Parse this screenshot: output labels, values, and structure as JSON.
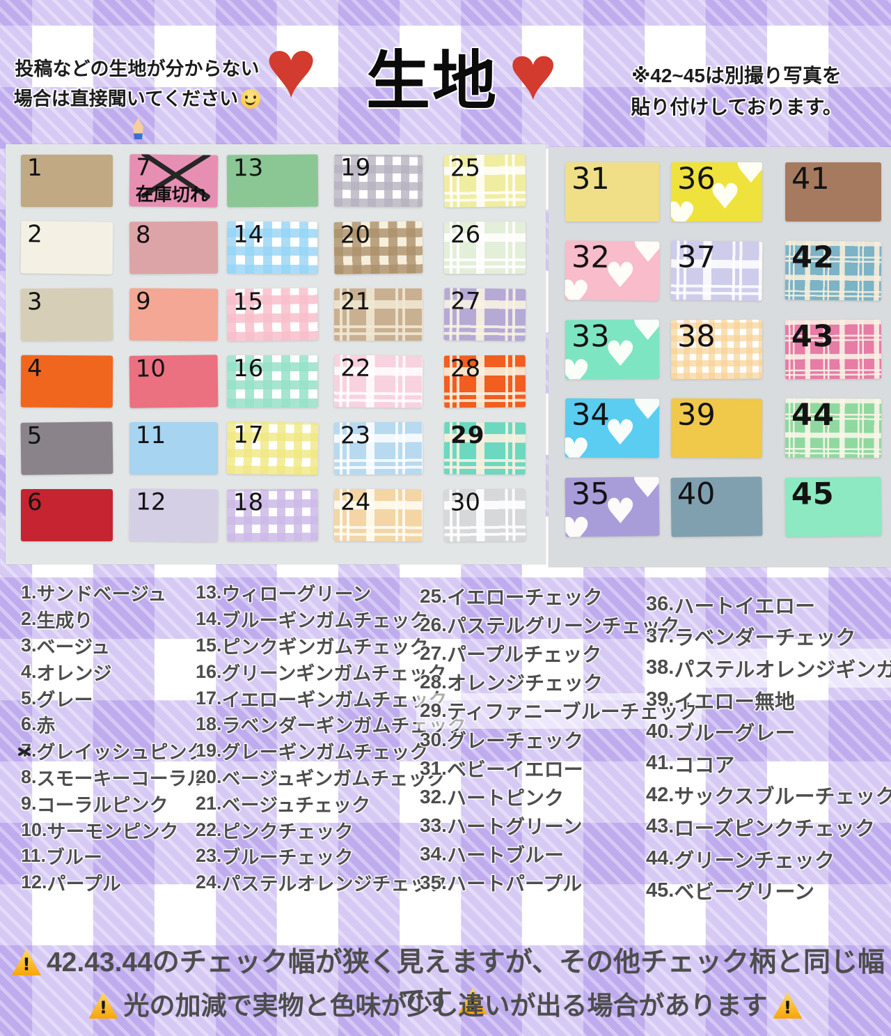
{
  "header": {
    "note_left": [
      "投稿などの生地が分からない",
      "場合は直接聞いてください"
    ],
    "title": "生地",
    "note_right": [
      "※42~45は別撮り写真を",
      "貼り付けしております。"
    ]
  },
  "icons": {
    "heart": "♥"
  },
  "out_of_stock_label": "在庫切れ",
  "palette": {
    "background_purple": "#d2c4ef",
    "heart_red": "#d23b2e",
    "header_text": "#1c1c1c",
    "legend_text_gray": "#4d4d4d",
    "warning_yellow": "#ffd95e",
    "warning_orange": "#f7a50a",
    "photo_left_bg": "#e3e6e7",
    "photo_right_bg": "#d9dcde"
  },
  "footer": {
    "line1": "42.43.44のチェック幅が狭く見えますが、その他チェック柄と同じ幅です",
    "line2": "光の加減で実物と色味が少し違いが出る場合があります"
  },
  "swatches": [
    {
      "num": 1,
      "name": "サンドベージュ",
      "type": "solid",
      "color": "#c0a983"
    },
    {
      "num": 2,
      "name": "生成り",
      "type": "solid",
      "color": "#f4f1e4"
    },
    {
      "num": 3,
      "name": "ベージュ",
      "type": "solid",
      "color": "#d7ceb7"
    },
    {
      "num": 4,
      "name": "オレンジ",
      "type": "solid",
      "color": "#f1661f"
    },
    {
      "num": 5,
      "name": "グレー",
      "type": "solid",
      "color": "#8b838a"
    },
    {
      "num": 6,
      "name": "赤",
      "type": "solid",
      "color": "#c52430"
    },
    {
      "num": 7,
      "name": "グレイッシュピンク",
      "type": "solid",
      "color": "#e78fb3",
      "out_of_stock": true
    },
    {
      "num": 8,
      "name": "スモーキーコーラル",
      "type": "solid",
      "color": "#dda4a7"
    },
    {
      "num": 9,
      "name": "コーラルピンク",
      "type": "solid",
      "color": "#f3a794"
    },
    {
      "num": 10,
      "name": "サーモンピンク",
      "type": "solid",
      "color": "#eb7080"
    },
    {
      "num": 11,
      "name": "ブルー",
      "type": "solid",
      "color": "#a6d4f1"
    },
    {
      "num": 12,
      "name": "パープル",
      "type": "solid",
      "color": "#d5cfe6"
    },
    {
      "num": 13,
      "name": "ウィローグリーン",
      "type": "solid",
      "color": "#8bc795"
    },
    {
      "num": 14,
      "name": "ブルーギンガムチェック",
      "type": "gingham",
      "band": "rgba(150,212,245,0.8)",
      "size": 13
    },
    {
      "num": 15,
      "name": "ピンクギンガムチェック",
      "type": "gingham",
      "band": "rgba(248,190,203,0.85)",
      "size": 13
    },
    {
      "num": 16,
      "name": "グリーンギンガムチェック",
      "type": "gingham",
      "band": "rgba(150,226,200,0.85)",
      "size": 13
    },
    {
      "num": 17,
      "name": "イエローギンガムチェック",
      "type": "gingham",
      "band": "rgba(240,232,130,0.8)",
      "size": 12
    },
    {
      "num": 18,
      "name": "ラベンダーギンガムチェック",
      "type": "gingham",
      "band": "rgba(205,186,232,0.85)",
      "size": 12
    },
    {
      "num": 19,
      "name": "グレーギンガムチェック",
      "type": "gingham",
      "band": "rgba(182,178,192,0.8)",
      "size": 12
    },
    {
      "num": 20,
      "name": "ベージュギンガムチェック",
      "type": "gingham",
      "band": "rgba(172,144,108,0.8)",
      "size": 13,
      "bg": "#f6efdb"
    },
    {
      "num": 21,
      "name": "ベージュチェック",
      "type": "plaid",
      "color": "#c9b091",
      "stripe": "rgba(240,232,210,0.9)"
    },
    {
      "num": 22,
      "name": "ピンクチェック",
      "type": "plaid",
      "color": "#f8d2de",
      "stripe": "rgba(255,255,255,0.85)"
    },
    {
      "num": 23,
      "name": "ブルーチェック",
      "type": "plaid",
      "color": "#b7daf1",
      "stripe": "rgba(255,255,255,0.85)"
    },
    {
      "num": 24,
      "name": "パステルオレンジチェック",
      "type": "plaid",
      "color": "#f3d5a6",
      "stripe": "rgba(255,252,242,0.9)"
    },
    {
      "num": 25,
      "name": "イエローチェック",
      "type": "plaid",
      "color": "#f0eda0",
      "stripe": "rgba(255,255,255,0.85)"
    },
    {
      "num": 26,
      "name": "パステルグリーンチェック",
      "type": "plaid",
      "color": "#e3efd9",
      "stripe": "rgba(255,255,255,0.9)"
    },
    {
      "num": 27,
      "name": "パープルチェック",
      "type": "plaid",
      "color": "#b5a9d5",
      "stripe": "rgba(248,243,226,0.9)"
    },
    {
      "num": 28,
      "name": "オレンジチェック",
      "type": "plaid",
      "color": "#f25d20",
      "stripe": "rgba(250,240,222,0.9)"
    },
    {
      "num": 29,
      "name": "ティファニーブルーチェック",
      "type": "plaid",
      "color": "#6bd8bf",
      "stripe": "rgba(252,240,224,0.9)",
      "bold_num": true
    },
    {
      "num": 30,
      "name": "グレーチェック",
      "type": "plaid",
      "color": "#d7d8da",
      "stripe": "rgba(255,255,255,0.9)"
    },
    {
      "num": 31,
      "name": "ベビーイエロー",
      "type": "solid",
      "color": "#f1df87"
    },
    {
      "num": 32,
      "name": "ハートピンク",
      "type": "hearts",
      "color": "#f8bccb"
    },
    {
      "num": 33,
      "name": "ハートグリーン",
      "type": "hearts",
      "color": "#7de5c2"
    },
    {
      "num": 34,
      "name": "ハートブルー",
      "type": "hearts",
      "color": "#5acdf1"
    },
    {
      "num": 35,
      "name": "ハートパープル",
      "type": "hearts",
      "color": "#a99dd9"
    },
    {
      "num": 36,
      "name": "ハートイエロー",
      "type": "hearts",
      "color": "#efe23c"
    },
    {
      "num": 37,
      "name": "ラベンダーチェック",
      "type": "plaid",
      "color": "#cdcceb",
      "stripe": "rgba(255,255,255,0.85)"
    },
    {
      "num": 38,
      "name": "パステルオレンジギンガム",
      "type": "gingham",
      "band": "rgba(248,210,150,0.7)",
      "size": 9
    },
    {
      "num": 39,
      "name": "イエロー無地",
      "type": "solid",
      "color": "#f0c84a"
    },
    {
      "num": 40,
      "name": "ブルーグレー",
      "type": "solid",
      "color": "#80a0b0"
    },
    {
      "num": 41,
      "name": "ココア",
      "type": "solid",
      "color": "#a67a5f"
    },
    {
      "num": 42,
      "name": "サックスブルーチェック",
      "type": "plaid",
      "color": "#7cb3c6",
      "stripe": "rgba(247,238,220,0.9)",
      "bold_num": true,
      "fine": true
    },
    {
      "num": 43,
      "name": "ローズピンクチェック",
      "type": "plaid",
      "color": "#e77ca6",
      "stripe": "rgba(250,240,228,0.9)",
      "bold_num": true,
      "fine": true
    },
    {
      "num": 44,
      "name": "グリーンチェック",
      "type": "plaid",
      "color": "#8fd9a0",
      "stripe": "rgba(250,246,232,0.9)",
      "bold_num": true,
      "fine": true
    },
    {
      "num": 45,
      "name": "ベビーグリーン",
      "type": "solid",
      "color": "#8ce9c2",
      "bold_num": true
    }
  ],
  "legend_columns": [
    [
      {
        "num": "1",
        "name": "サンドベージュ"
      },
      {
        "num": "2",
        "name": "生成り"
      },
      {
        "num": "3",
        "name": "ベージュ"
      },
      {
        "num": "4",
        "name": "オレンジ"
      },
      {
        "num": "5",
        "name": "グレー"
      },
      {
        "num": "6",
        "name": "赤"
      },
      {
        "num": "7",
        "name": "グレイッシュピンク",
        "crossed": true
      },
      {
        "num": "8",
        "name": "スモーキーコーラル"
      },
      {
        "num": "9",
        "name": "コーラルピンク"
      },
      {
        "num": "10",
        "name": "サーモンピンク"
      },
      {
        "num": "11",
        "name": "ブルー"
      },
      {
        "num": "12",
        "name": "パープル"
      }
    ],
    [
      {
        "num": "13",
        "name": "ウィローグリーン"
      },
      {
        "num": "14",
        "name": "ブルーギンガムチェック"
      },
      {
        "num": "15",
        "name": "ピンクギンガムチェック"
      },
      {
        "num": "16",
        "name": "グリーンギンガムチェック"
      },
      {
        "num": "17",
        "name": "イエローギンガムチェック"
      },
      {
        "num": "18",
        "name": "ラベンダーギンガムチェック"
      },
      {
        "num": "19",
        "name": "グレーギンガムチェック"
      },
      {
        "num": "20",
        "name": "ベージュギンガムチェック"
      },
      {
        "num": "21",
        "name": "ベージュチェック"
      },
      {
        "num": "22",
        "name": "ピンクチェック"
      },
      {
        "num": "23",
        "name": "ブルーチェック"
      },
      {
        "num": "24",
        "name": "パステルオレンジチェック"
      }
    ],
    [
      {
        "num": "25",
        "name": "イエローチェック"
      },
      {
        "num": "26",
        "name": "パステルグリーンチェック"
      },
      {
        "num": "27",
        "name": "パープルチェック"
      },
      {
        "num": "28",
        "name": "オレンジチェック"
      },
      {
        "num": "29",
        "name": "ティファニーブルーチェック"
      },
      {
        "num": "30",
        "name": "グレーチェック"
      },
      {
        "num": "31",
        "name": "ベビーイエロー"
      },
      {
        "num": "32",
        "name": "ハートピンク"
      },
      {
        "num": "33",
        "name": "ハートグリーン"
      },
      {
        "num": "34",
        "name": "ハートブルー"
      },
      {
        "num": "35",
        "name": "ハートパープル"
      }
    ],
    [
      {
        "num": "36",
        "name": "ハートイエロー"
      },
      {
        "num": "37",
        "name": "ラベンダーチェック"
      },
      {
        "num": "38",
        "name": "パステルオレンジギンガム"
      },
      {
        "num": "39",
        "name": "イエロー無地"
      },
      {
        "num": "40",
        "name": "ブルーグレー"
      },
      {
        "num": "41",
        "name": "ココア"
      },
      {
        "num": "42",
        "name": "サックスブルーチェック"
      },
      {
        "num": "43",
        "name": "ローズピンクチェック"
      },
      {
        "num": "44",
        "name": "グリーンチェック"
      },
      {
        "num": "45",
        "name": "ベビーグリーン"
      }
    ]
  ]
}
